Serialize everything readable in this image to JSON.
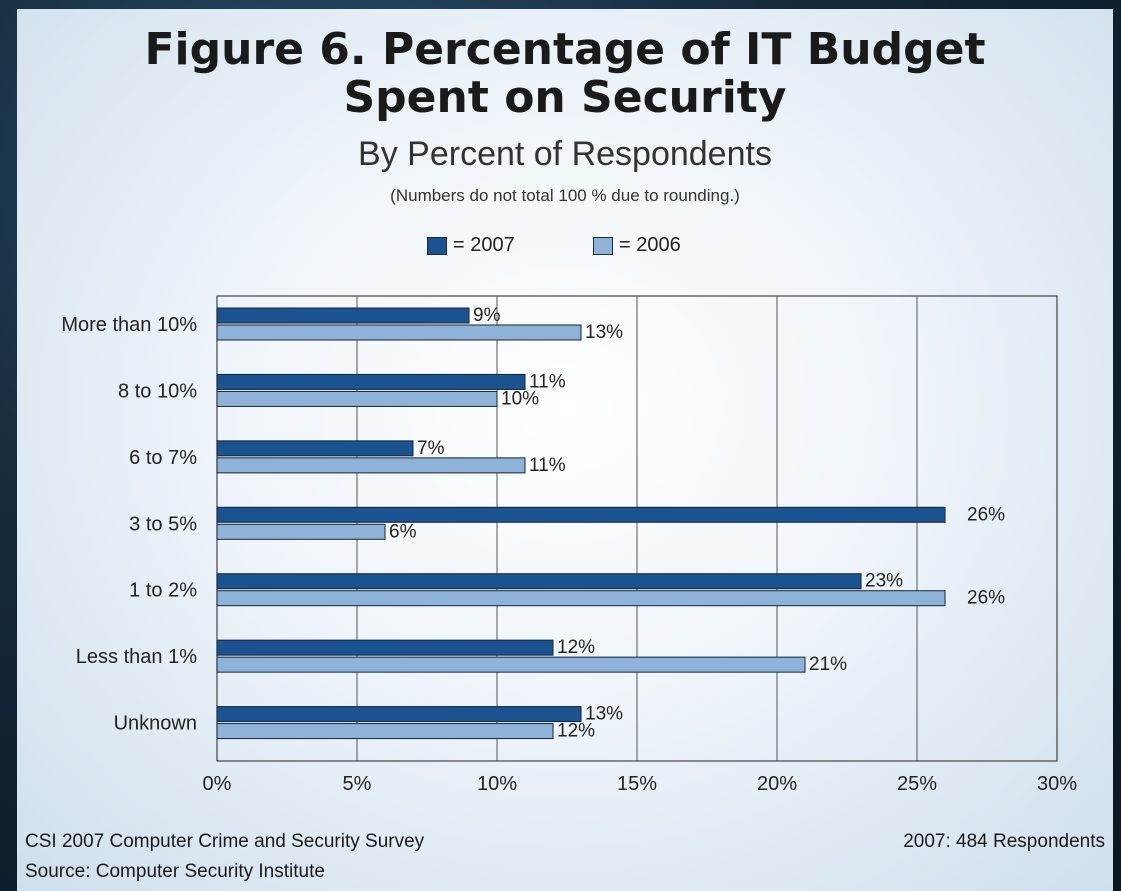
{
  "chart_data": {
    "type": "bar",
    "orientation": "horizontal",
    "title": "Figure 6. Percentage of IT Budget Spent on Security",
    "title_line1": "Figure 6. Percentage of IT Budget",
    "title_line2": "Spent on Security",
    "subtitle": "By Percent of Respondents",
    "note": "(Numbers do not total 100 % due to rounding.)",
    "categories": [
      "More than 10%",
      "8 to 10%",
      "6 to 7%",
      "3 to 5%",
      "1 to 2%",
      "Less than 1%",
      "Unknown"
    ],
    "series": [
      {
        "name": "2007",
        "legend_label": "= 2007",
        "color": "#1b5390",
        "values": [
          9,
          11,
          7,
          26,
          23,
          12,
          13
        ],
        "labels": [
          "9%",
          "11%",
          "7%",
          "26%",
          "23%",
          "12%",
          "13%"
        ]
      },
      {
        "name": "2006",
        "legend_label": "= 2006",
        "color": "#8fb3d8",
        "values": [
          13,
          10,
          11,
          6,
          26,
          21,
          12
        ],
        "labels": [
          "13%",
          "10%",
          "11%",
          "6%",
          "26%",
          "21%",
          "12%"
        ]
      }
    ],
    "xlim": [
      0,
      30
    ],
    "xticks": [
      "0%",
      "5%",
      "10%",
      "15%",
      "20%",
      "25%",
      "30%"
    ],
    "grid": true,
    "legend_position": "top"
  },
  "footer": {
    "survey": "CSI 2007 Computer Crime and Security Survey",
    "source": "Source: Computer Security Institute",
    "respondents": "2007: 484 Respondents"
  }
}
